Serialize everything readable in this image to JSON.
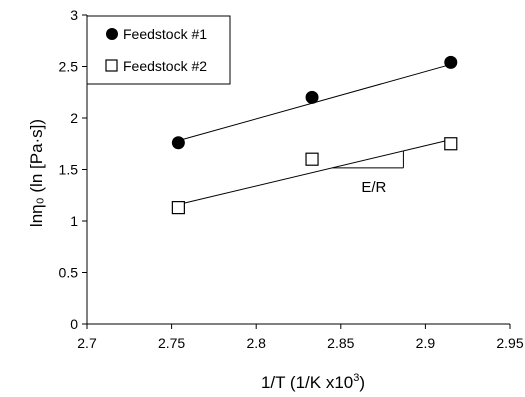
{
  "chart_data": {
    "type": "scatter",
    "xlabel": "1/T (1/K x10",
    "xlabel_sup": "3",
    "xlabel_end": ")",
    "ylabel": "lnη₀ (ln [Pa·s])",
    "xlim": [
      2.7,
      2.95
    ],
    "ylim": [
      0,
      3
    ],
    "xticks": [
      "2.7",
      "2.75",
      "2.8",
      "2.85",
      "2.9",
      "2.95"
    ],
    "yticks": [
      "0",
      "0.5",
      "1",
      "1.5",
      "2",
      "2.5",
      "3"
    ],
    "legend_position": "top-left",
    "series": [
      {
        "name": "Feedstock #1",
        "marker": "filled-circle",
        "x": [
          2.754,
          2.833,
          2.915
        ],
        "y": [
          1.76,
          2.2,
          2.54
        ],
        "fit": [
          [
            2.754,
            1.78
          ],
          [
            2.915,
            2.52
          ]
        ]
      },
      {
        "name": "Feedstock #2",
        "marker": "open-square",
        "x": [
          2.754,
          2.833,
          2.915
        ],
        "y": [
          1.13,
          1.6,
          1.75
        ],
        "fit": [
          [
            2.754,
            1.16
          ],
          [
            2.915,
            1.79
          ]
        ]
      }
    ],
    "annotations": [
      {
        "text": "E/R"
      }
    ]
  }
}
